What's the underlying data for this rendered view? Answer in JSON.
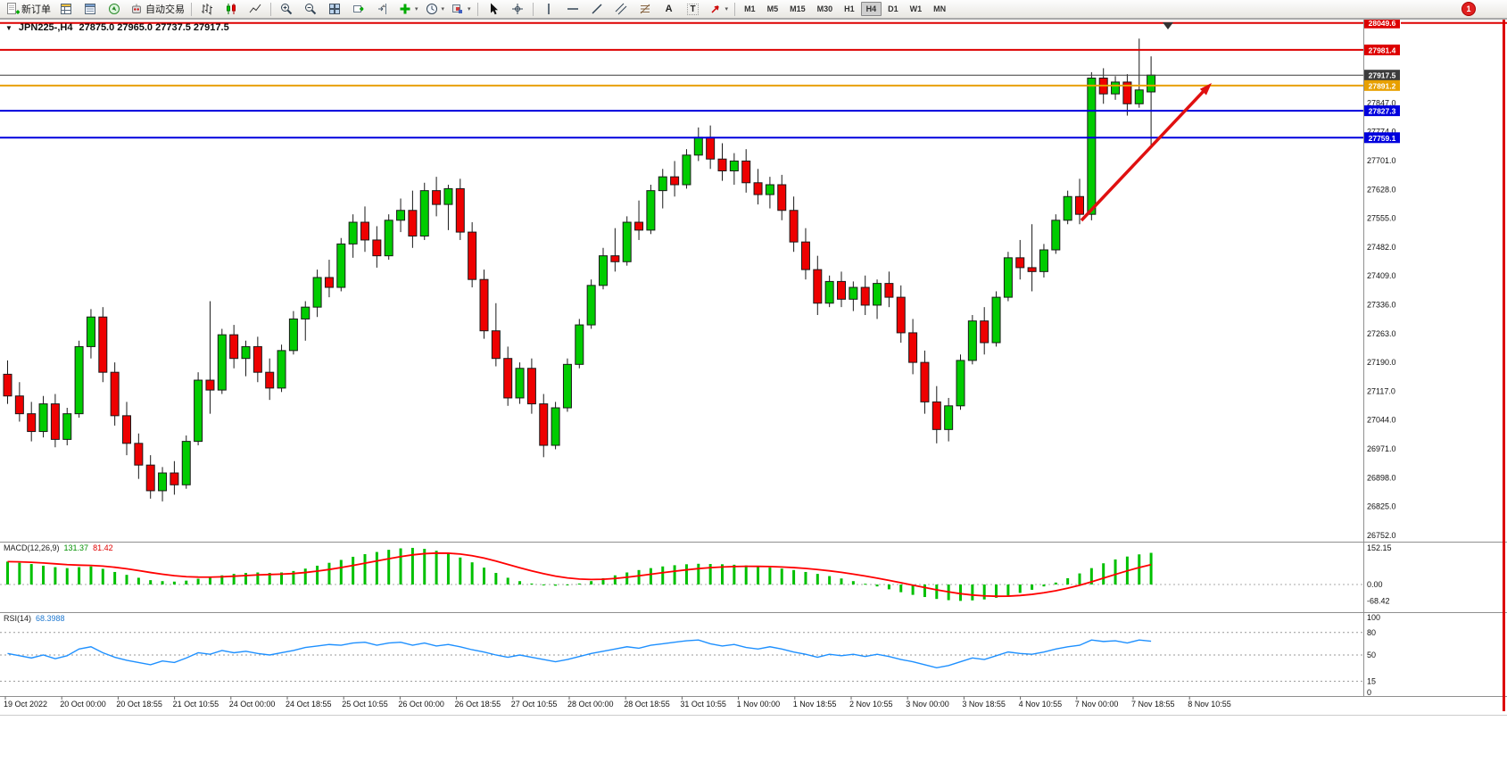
{
  "toolbar": {
    "new_order_label": "新订单",
    "autotrading_label": "自动交易",
    "text_tool_label": "A",
    "label_tool_label": "T",
    "timeframes": [
      "M1",
      "M5",
      "M15",
      "M30",
      "H1",
      "H4",
      "D1",
      "W1",
      "MN"
    ],
    "active_timeframe": "H4",
    "notification_count": "1"
  },
  "chart": {
    "title_symbol": "JPN225-,H4",
    "title_ohlc": "27875.0 27965.0 27737.5 27917.5"
  },
  "chart_data": {
    "type": "candlestick",
    "symbol": "JPN225-",
    "timeframe": "H4",
    "up_color": "#00cc00",
    "down_color": "#ee0000",
    "outline_color": "#1a1a1a",
    "candles": [
      [
        27160,
        27195,
        27085,
        27105
      ],
      [
        27105,
        27140,
        27040,
        27060
      ],
      [
        27060,
        27090,
        26990,
        27015
      ],
      [
        27015,
        27105,
        27000,
        27085
      ],
      [
        27085,
        27110,
        26975,
        26995
      ],
      [
        26995,
        27075,
        26980,
        27060
      ],
      [
        27060,
        27245,
        27050,
        27230
      ],
      [
        27230,
        27325,
        27200,
        27305
      ],
      [
        27305,
        27330,
        27140,
        27165
      ],
      [
        27165,
        27190,
        27030,
        27055
      ],
      [
        27055,
        27090,
        26955,
        26985
      ],
      [
        26985,
        27010,
        26895,
        26930
      ],
      [
        26930,
        26955,
        26845,
        26865
      ],
      [
        26865,
        26925,
        26838,
        26910
      ],
      [
        26910,
        26940,
        26855,
        26880
      ],
      [
        26880,
        27005,
        26870,
        26990
      ],
      [
        26990,
        27165,
        26980,
        27145
      ],
      [
        27145,
        27345,
        27060,
        27120
      ],
      [
        27120,
        27275,
        27110,
        27260
      ],
      [
        27260,
        27285,
        27175,
        27200
      ],
      [
        27200,
        27245,
        27155,
        27230
      ],
      [
        27230,
        27255,
        27140,
        27165
      ],
      [
        27165,
        27200,
        27095,
        27125
      ],
      [
        27125,
        27235,
        27115,
        27220
      ],
      [
        27220,
        27320,
        27210,
        27300
      ],
      [
        27300,
        27345,
        27245,
        27330
      ],
      [
        27330,
        27425,
        27305,
        27405
      ],
      [
        27405,
        27450,
        27355,
        27380
      ],
      [
        27380,
        27505,
        27370,
        27490
      ],
      [
        27490,
        27565,
        27455,
        27545
      ],
      [
        27545,
        27585,
        27470,
        27500
      ],
      [
        27500,
        27535,
        27430,
        27460
      ],
      [
        27460,
        27565,
        27450,
        27550
      ],
      [
        27550,
        27605,
        27520,
        27575
      ],
      [
        27575,
        27625,
        27480,
        27510
      ],
      [
        27510,
        27645,
        27500,
        27625
      ],
      [
        27625,
        27660,
        27560,
        27590
      ],
      [
        27590,
        27640,
        27525,
        27630
      ],
      [
        27630,
        27655,
        27500,
        27520
      ],
      [
        27520,
        27545,
        27380,
        27400
      ],
      [
        27400,
        27425,
        27250,
        27270
      ],
      [
        27270,
        27340,
        27180,
        27200
      ],
      [
        27200,
        27230,
        27080,
        27100
      ],
      [
        27100,
        27190,
        27085,
        27175
      ],
      [
        27175,
        27200,
        27060,
        27085
      ],
      [
        27085,
        27110,
        26950,
        26980
      ],
      [
        26980,
        27090,
        26970,
        27075
      ],
      [
        27075,
        27200,
        27065,
        27185
      ],
      [
        27185,
        27300,
        27175,
        27285
      ],
      [
        27285,
        27400,
        27275,
        27385
      ],
      [
        27385,
        27480,
        27375,
        27460
      ],
      [
        27460,
        27530,
        27420,
        27445
      ],
      [
        27445,
        27560,
        27435,
        27545
      ],
      [
        27545,
        27600,
        27500,
        27525
      ],
      [
        27525,
        27640,
        27515,
        27625
      ],
      [
        27625,
        27680,
        27580,
        27660
      ],
      [
        27660,
        27700,
        27610,
        27640
      ],
      [
        27640,
        27730,
        27630,
        27715
      ],
      [
        27715,
        27785,
        27700,
        27760
      ],
      [
        27760,
        27790,
        27680,
        27705
      ],
      [
        27705,
        27745,
        27650,
        27675
      ],
      [
        27675,
        27720,
        27640,
        27700
      ],
      [
        27700,
        27730,
        27620,
        27645
      ],
      [
        27645,
        27680,
        27590,
        27615
      ],
      [
        27615,
        27660,
        27580,
        27640
      ],
      [
        27640,
        27665,
        27550,
        27575
      ],
      [
        27575,
        27610,
        27470,
        27495
      ],
      [
        27495,
        27530,
        27400,
        27425
      ],
      [
        27425,
        27460,
        27310,
        27340
      ],
      [
        27340,
        27410,
        27330,
        27395
      ],
      [
        27395,
        27420,
        27330,
        27350
      ],
      [
        27350,
        27395,
        27320,
        27380
      ],
      [
        27380,
        27410,
        27310,
        27335
      ],
      [
        27335,
        27400,
        27300,
        27390
      ],
      [
        27390,
        27420,
        27330,
        27355
      ],
      [
        27355,
        27385,
        27240,
        27265
      ],
      [
        27265,
        27300,
        27160,
        27190
      ],
      [
        27190,
        27220,
        27060,
        27090
      ],
      [
        27090,
        27130,
        26985,
        27020
      ],
      [
        27020,
        27100,
        26990,
        27080
      ],
      [
        27080,
        27210,
        27070,
        27195
      ],
      [
        27195,
        27310,
        27185,
        27295
      ],
      [
        27295,
        27330,
        27210,
        27240
      ],
      [
        27240,
        27370,
        27230,
        27355
      ],
      [
        27355,
        27470,
        27345,
        27455
      ],
      [
        27455,
        27500,
        27400,
        27430
      ],
      [
        27430,
        27540,
        27370,
        27420
      ],
      [
        27420,
        27490,
        27405,
        27475
      ],
      [
        27475,
        27565,
        27465,
        27550
      ],
      [
        27550,
        27625,
        27540,
        27610
      ],
      [
        27610,
        27655,
        27540,
        27565
      ],
      [
        27565,
        27925,
        27550,
        27910
      ],
      [
        27910,
        27935,
        27845,
        27870
      ],
      [
        27870,
        27915,
        27855,
        27900
      ],
      [
        27900,
        27920,
        27815,
        27845
      ],
      [
        27845,
        28010,
        27835,
        27880
      ],
      [
        27875,
        27965,
        27737.5,
        27917.5
      ]
    ],
    "hlines": [
      {
        "price": 28049.6,
        "label": "28049.6",
        "color": "#dd0000",
        "width": 2
      },
      {
        "price": 27981.4,
        "label": "27981.4",
        "color": "#dd0000",
        "width": 2
      },
      {
        "price": 27917.5,
        "label": "27917.5",
        "color": "#3c3c3c",
        "width": 1,
        "current": true
      },
      {
        "price": 27891.2,
        "label": "27891.2",
        "color": "#e8a000",
        "width": 2
      },
      {
        "price": 27827.3,
        "label": "27827.3",
        "color": "#0000dd",
        "width": 2
      },
      {
        "price": 27759.1,
        "label": "27759.1",
        "color": "#0000dd",
        "width": 2
      }
    ],
    "price_axis_labels": [
      "27847.0",
      "27774.0",
      "27701.0",
      "27628.0",
      "27555.0",
      "27482.0",
      "27409.0",
      "27336.0",
      "27263.0",
      "27190.0",
      "27117.0",
      "27044.0",
      "26971.0",
      "26898.0",
      "26825.0",
      "26752.0"
    ],
    "time_labels": [
      "19 Oct 2022",
      "20 Oct 00:00",
      "20 Oct 18:55",
      "21 Oct 10:55",
      "24 Oct 00:00",
      "24 Oct 18:55",
      "25 Oct 10:55",
      "26 Oct 00:00",
      "26 Oct 18:55",
      "27 Oct 10:55",
      "28 Oct 00:00",
      "28 Oct 18:55",
      "31 Oct 10:55",
      "1 Nov 00:00",
      "1 Nov 18:55",
      "2 Nov 10:55",
      "3 Nov 00:00",
      "3 Nov 18:55",
      "4 Nov 10:55",
      "7 Nov 00:00",
      "7 Nov 18:55",
      "8 Nov 10:55"
    ],
    "macd": {
      "name": "MACD(12,26,9)",
      "main_value": "131.37",
      "signal_value": "81.42",
      "scale_labels": [
        "152.15",
        "0.00",
        "-68.42"
      ],
      "histogram_color": "#00c000",
      "signal_color": "#ff0000",
      "histogram": [
        95,
        90,
        85,
        78,
        72,
        68,
        72,
        75,
        65,
        52,
        40,
        28,
        18,
        14,
        12,
        16,
        24,
        30,
        38,
        44,
        48,
        50,
        48,
        50,
        56,
        66,
        78,
        90,
        102,
        115,
        126,
        135,
        144,
        150,
        152,
        148,
        140,
        128,
        112,
        92,
        70,
        48,
        28,
        14,
        4,
        -2,
        -5,
        -3,
        4,
        14,
        26,
        38,
        50,
        60,
        68,
        75,
        80,
        84,
        86,
        85,
        84,
        82,
        79,
        75,
        71,
        66,
        60,
        52,
        44,
        35,
        25,
        14,
        3,
        -8,
        -20,
        -32,
        -43,
        -52,
        -60,
        -65,
        -68,
        -66,
        -62,
        -55,
        -46,
        -35,
        -22,
        -8,
        8,
        26,
        46,
        68,
        88,
        104,
        116,
        125,
        131.37
      ]
    },
    "rsi": {
      "name": "RSI(14)",
      "value": "68.3988",
      "scale_labels": [
        "100",
        "80",
        "50",
        "15",
        "0"
      ],
      "levels": [
        80,
        50,
        15
      ],
      "line_color": "#1e90ff",
      "values": [
        52,
        49,
        46,
        50,
        45,
        49,
        58,
        61,
        53,
        47,
        43,
        40,
        37,
        42,
        40,
        46,
        53,
        51,
        56,
        53,
        55,
        52,
        50,
        53,
        56,
        60,
        62,
        64,
        63,
        66,
        67,
        63,
        66,
        67,
        63,
        66,
        62,
        64,
        61,
        57,
        54,
        50,
        47,
        50,
        47,
        44,
        41,
        44,
        48,
        52,
        55,
        58,
        61,
        59,
        63,
        65,
        67,
        69,
        70,
        65,
        62,
        64,
        60,
        58,
        61,
        58,
        54,
        51,
        47,
        51,
        49,
        51,
        48,
        51,
        48,
        44,
        41,
        37,
        33,
        36,
        41,
        46,
        44,
        49,
        54,
        52,
        51,
        54,
        58,
        61,
        63,
        70,
        68,
        69,
        66,
        70,
        68.4
      ]
    },
    "arrow": {
      "color": "#e01010"
    }
  }
}
